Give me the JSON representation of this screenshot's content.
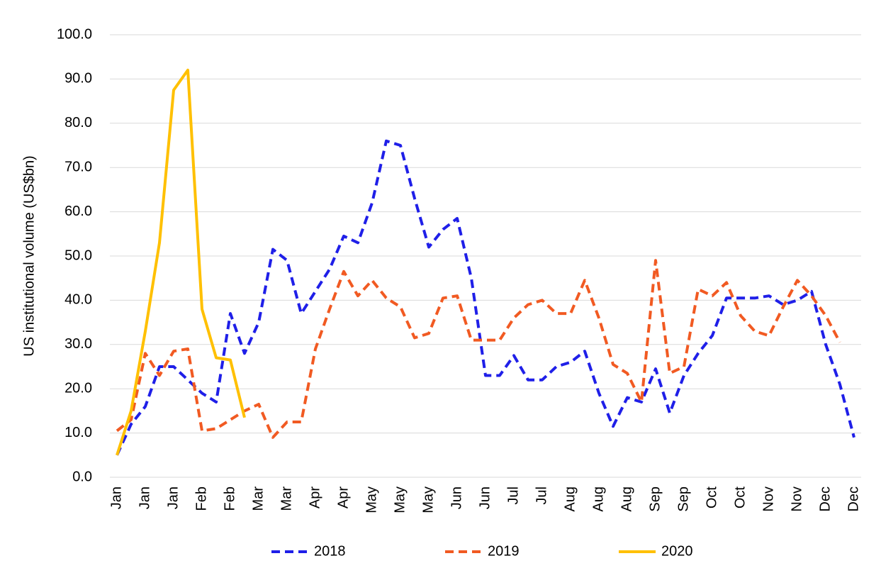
{
  "chart_data": {
    "type": "line",
    "ylabel": "US institutional volume (US$bn)",
    "categories": [
      "Jan",
      null,
      "Jan",
      null,
      "Jan",
      null,
      "Feb",
      null,
      "Feb",
      null,
      "Mar",
      null,
      "Mar",
      null,
      "Apr",
      null,
      "Apr",
      null,
      "May",
      null,
      "May",
      null,
      "May",
      null,
      "Jun",
      null,
      "Jun",
      null,
      "Jul",
      null,
      "Jul",
      null,
      "Aug",
      null,
      "Aug",
      null,
      "Aug",
      null,
      "Sep",
      null,
      "Sep",
      null,
      "Oct",
      null,
      "Oct",
      null,
      "Nov",
      null,
      "Nov",
      null,
      "Dec",
      null,
      "Dec"
    ],
    "series": [
      {
        "name": "2018",
        "color": "#1f1fe8",
        "dashed": true,
        "values": [
          5,
          12,
          16,
          25,
          25,
          22,
          19,
          17,
          37,
          28,
          35,
          51.5,
          49,
          37,
          42,
          47,
          54.5,
          53,
          62,
          76,
          75,
          63,
          52,
          56,
          58.5,
          45,
          23,
          23,
          27.5,
          22,
          22,
          25,
          26,
          28.5,
          19,
          11.5,
          18,
          17,
          24.5,
          14.5,
          23,
          28,
          32,
          40.5,
          40.5,
          40.5,
          41,
          39,
          40,
          42,
          30,
          21,
          9
        ]
      },
      {
        "name": "2019",
        "color": "#f15a22",
        "dashed": true,
        "values": [
          10.5,
          13,
          28,
          23,
          28.5,
          29,
          10.5,
          11,
          13,
          15,
          16.5,
          9,
          12.5,
          12.5,
          29,
          38,
          46.5,
          41,
          44.5,
          40.5,
          38.5,
          31.5,
          32.5,
          40.5,
          41,
          31,
          31,
          31,
          36,
          39,
          40,
          37,
          37,
          44.5,
          36,
          25.5,
          23.5,
          17,
          49,
          23.5,
          25,
          42.5,
          41,
          44,
          36.5,
          33,
          32,
          38.5,
          44.5,
          41,
          36.5,
          30.5,
          null
        ]
      },
      {
        "name": "2020",
        "color": "#ffc000",
        "dashed": false,
        "values": [
          5,
          15,
          33,
          53,
          87.5,
          92,
          38,
          27,
          26.5,
          13.5,
          null,
          null,
          null,
          null,
          null,
          null,
          null,
          null,
          null,
          null,
          null,
          null,
          null,
          null,
          null,
          null,
          null,
          null,
          null,
          null,
          null,
          null,
          null,
          null,
          null,
          null,
          null,
          null,
          null,
          null,
          null,
          null,
          null,
          null,
          null,
          null,
          null,
          null,
          null,
          null,
          null,
          null,
          null
        ]
      }
    ],
    "ylim": [
      0,
      100
    ],
    "yticks": [
      {
        "value": 0,
        "label": "0.0"
      },
      {
        "value": 10,
        "label": "10.0"
      },
      {
        "value": 20,
        "label": "20.0"
      },
      {
        "value": 30,
        "label": "30.0"
      },
      {
        "value": 40,
        "label": "40.0"
      },
      {
        "value": 50,
        "label": "50.0"
      },
      {
        "value": 60,
        "label": "60.0"
      },
      {
        "value": 70,
        "label": "70.0"
      },
      {
        "value": 80,
        "label": "80.0"
      },
      {
        "value": 90,
        "label": "90.0"
      },
      {
        "value": 100,
        "label": "100.0"
      }
    ],
    "grid": true,
    "legend": "bottom"
  }
}
